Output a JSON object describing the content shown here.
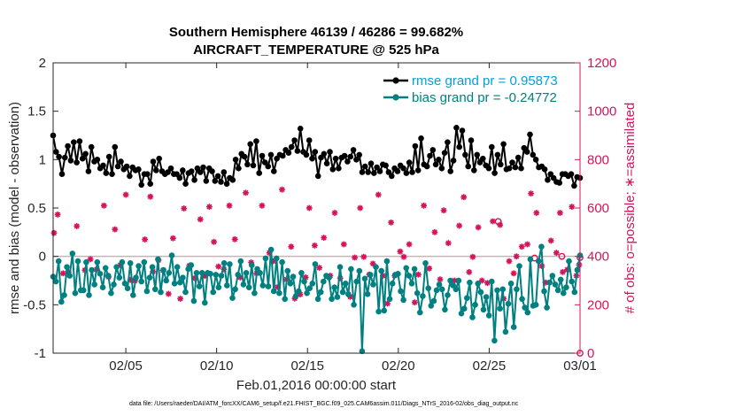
{
  "chart_data": {
    "type": "line",
    "title": "Southern Hemisphere 46139 / 46286 = 99.682%",
    "subtitle": "AIRCRAFT_TEMPERATURE @ 525 hPa",
    "xlabel": "Feb.01,2016 00:00:00 start",
    "ylabel": "rmse and bias (model - observation)",
    "y2label": "# of obs: o=possible; ∗=assimilated",
    "footer": "data file: /Users/raeder/DAI/ATM_forcXX/CAM6_setup/f.e21.FHIST_BGC.f09_025.CAM6assim.011/Diags_NTrS_2016-02/obs_diag_output.nc",
    "xlim": [
      1,
      30
    ],
    "ylim": [
      -1,
      2
    ],
    "y2lim": [
      0,
      1200
    ],
    "grid": false,
    "legend_position": "top-right",
    "xticks": [
      5,
      10,
      15,
      20,
      25,
      30
    ],
    "xtick_labels": [
      "02/05",
      "02/10",
      "02/15",
      "02/20",
      "02/25",
      "03/01"
    ],
    "yticks": [
      -1,
      -0.5,
      0,
      0.5,
      1,
      1.5,
      2
    ],
    "ytick_labels": [
      "-1",
      "-0.5",
      "0",
      "0.5",
      "1",
      "1.5",
      "2"
    ],
    "y2ticks": [
      0,
      200,
      400,
      600,
      800,
      1000,
      1200
    ],
    "y2tick_labels": [
      "0",
      "200",
      "400",
      "600",
      "800",
      "1000",
      "1200"
    ],
    "zero_line": 0,
    "colors": {
      "rmse": "#000000",
      "bias": "#008080",
      "obs": "#d4145a",
      "rmse_legend": "#00a0e0",
      "zero": "#c8b4b4"
    },
    "series": [
      {
        "name": "rmse grand pr = 0.95873",
        "key": "rmse",
        "values": [
          1.25,
          1.08,
          1.03,
          0.85,
          1.02,
          1.14,
          0.99,
          1.18,
          0.97,
          1.19,
          1.01,
          1.06,
          0.88,
          1.13,
          0.98,
          1.0,
          0.91,
          0.94,
          0.86,
          1.03,
          0.85,
          1.13,
          0.93,
          0.98,
          0.9,
          0.93,
          0.83,
          0.92,
          0.89,
          0.9,
          0.74,
          0.85,
          0.85,
          0.75,
          0.98,
          0.89,
          1.01,
          0.88,
          0.85,
          0.87,
          0.91,
          0.85,
          0.85,
          0.81,
          0.89,
          0.75,
          0.86,
          0.88,
          0.79,
          0.91,
          0.87,
          0.92,
          0.78,
          0.91,
          0.88,
          0.78,
          0.83,
          0.77,
          0.87,
          0.75,
          0.81,
          0.79,
          1.0,
          0.91,
          1.06,
          1.03,
          0.95,
          1.16,
          0.94,
          1.19,
          0.86,
          1.04,
          0.97,
          0.93,
          1.05,
          0.88,
          1.01,
          1.05,
          1.04,
          1.1,
          1.07,
          1.13,
          1.2,
          1.09,
          1.32,
          1.08,
          1.05,
          1.2,
          1.01,
          1.08,
          0.83,
          1.02,
          1.06,
          0.96,
          1.08,
          0.9,
          1.01,
          0.91,
          1.02,
          1.04,
          0.98,
          1.03,
          1.1,
          1.0,
          1.05,
          0.87,
          0.93,
          0.87,
          0.96,
          0.86,
          0.92,
          0.88,
          0.95,
          0.94,
          0.87,
          0.83,
          0.91,
          0.88,
          0.94,
          0.91,
          0.86,
          0.97,
          0.87,
          1.14,
          0.89,
          1.22,
          0.95,
          0.93,
          1.04,
          1.1,
          0.95,
          1.0,
          0.91,
          1.07,
          1.18,
          0.88,
          0.99,
          1.33,
          1.13,
          1.3,
          1.05,
          0.93,
          1.2,
          0.89,
          1.05,
          0.97,
          1.01,
          0.94,
          0.91,
          1.13,
          0.86,
          1.05,
          0.95,
          1.16,
          0.9,
          0.91,
          0.97,
          0.92,
          1.02,
          0.91,
          1.12,
          1.08,
          1.26,
          1.05,
          1.0,
          0.92,
          0.93,
          0.9,
          0.79,
          0.85,
          0.81,
          0.77,
          0.76,
          0.85,
          0.85,
          0.83,
          0.85,
          0.73,
          0.82,
          0.81
        ]
      },
      {
        "name": "bias grand pr = -0.24772",
        "key": "bias",
        "values": [
          -0.21,
          -0.26,
          -0.05,
          -0.47,
          -0.4,
          -0.11,
          -0.2,
          0.03,
          -0.38,
          -0.05,
          -0.35,
          -0.35,
          -0.06,
          -0.4,
          -0.14,
          -0.29,
          -0.06,
          -0.18,
          -0.32,
          -0.12,
          -0.2,
          -0.38,
          -0.29,
          -0.11,
          -0.22,
          -0.06,
          -0.28,
          -0.33,
          -0.07,
          -0.4,
          -0.22,
          -0.1,
          -0.26,
          -0.06,
          -0.36,
          -0.22,
          -0.11,
          -0.34,
          -0.03,
          -0.37,
          -0.14,
          -0.25,
          -0.17,
          0.01,
          -0.28,
          -0.11,
          -0.27,
          -0.22,
          -0.37,
          -0.13,
          -0.09,
          -0.46,
          -0.17,
          -0.31,
          -0.17,
          -0.48,
          -0.17,
          -0.18,
          -0.37,
          -0.19,
          -0.32,
          -0.2,
          -0.07,
          -0.3,
          -0.08,
          -0.43,
          -0.34,
          -0.19,
          -0.05,
          -0.29,
          -0.17,
          -0.32,
          -0.09,
          -0.38,
          -0.13,
          -0.17,
          -0.3,
          -0.02,
          -0.31,
          0.07,
          -0.36,
          -0.02,
          -0.38,
          -0.06,
          -0.44,
          -0.15,
          -0.28,
          -0.21,
          -0.41,
          -0.36,
          -0.17,
          -0.26,
          -0.38,
          -0.33,
          -0.28,
          -0.08,
          -0.44,
          -0.37,
          -0.26,
          -0.2,
          -0.22,
          -0.44,
          -0.32,
          -0.42,
          -0.11,
          -0.37,
          -0.28,
          -0.39,
          -0.13,
          -0.5,
          -0.26,
          -0.15,
          -0.98,
          -0.23,
          -0.39,
          -0.19,
          -0.29,
          -0.11,
          -0.57,
          -0.15,
          -0.56,
          -0.05,
          -0.44,
          -0.28,
          -0.19,
          -0.18,
          -0.36,
          -0.45,
          -0.12,
          -0.2,
          -0.28,
          -0.13,
          -0.38,
          -0.58,
          -0.41,
          -0.07,
          -0.33,
          -0.51,
          -0.46,
          -0.35,
          -0.29,
          -0.34,
          -0.55,
          -0.4,
          -0.25,
          -0.3,
          -0.34,
          -0.25,
          -0.59,
          -0.54,
          -0.43,
          -0.27,
          -0.63,
          -0.5,
          -0.28,
          -0.37,
          -0.55,
          -0.42,
          -0.61,
          -0.26,
          -0.87,
          -0.35,
          -0.54,
          -0.34,
          -0.78,
          -0.49,
          -0.28,
          -0.73,
          -0.34,
          -0.1,
          -0.44,
          -0.53,
          -0.58,
          -0.03,
          -0.51,
          -0.5,
          -0.05,
          0.1,
          -0.36,
          -0.53,
          -0.27,
          -0.2,
          -0.29,
          -0.35,
          -0.24,
          -0.38,
          -0.32,
          -0.05,
          -0.26,
          -0.37,
          -0.14,
          0.01
        ]
      }
    ],
    "obs_assimilated": [
      [
        1.05,
        497
      ],
      [
        1.25,
        573
      ],
      [
        1.55,
        330
      ],
      [
        1.85,
        335
      ],
      [
        2.3,
        525
      ],
      [
        2.75,
        343
      ],
      [
        3.05,
        388
      ],
      [
        3.4,
        346
      ],
      [
        3.8,
        610
      ],
      [
        4.05,
        315
      ],
      [
        4.4,
        512
      ],
      [
        4.7,
        364
      ],
      [
        5.0,
        655
      ],
      [
        5.25,
        303
      ],
      [
        5.5,
        299
      ],
      [
        6.05,
        470
      ],
      [
        6.35,
        647
      ],
      [
        6.5,
        337
      ],
      [
        6.8,
        384
      ],
      [
        7.05,
        342
      ],
      [
        7.35,
        245
      ],
      [
        7.6,
        475
      ],
      [
        8.0,
        225
      ],
      [
        8.2,
        598
      ],
      [
        8.5,
        362
      ],
      [
        8.8,
        310
      ],
      [
        9.1,
        553
      ],
      [
        9.35,
        319
      ],
      [
        9.6,
        605
      ],
      [
        9.85,
        460
      ],
      [
        10.1,
        358
      ],
      [
        10.4,
        347
      ],
      [
        10.7,
        610
      ],
      [
        11.0,
        471
      ],
      [
        11.3,
        313
      ],
      [
        11.6,
        663
      ],
      [
        11.9,
        375
      ],
      [
        12.2,
        330
      ],
      [
        12.5,
        610
      ],
      [
        12.9,
        415
      ],
      [
        13.1,
        380
      ],
      [
        13.35,
        273
      ],
      [
        13.6,
        676
      ],
      [
        13.85,
        305
      ],
      [
        14.1,
        440
      ],
      [
        14.3,
        226
      ],
      [
        14.6,
        243
      ],
      [
        14.9,
        313
      ],
      [
        15.1,
        600
      ],
      [
        15.4,
        445
      ],
      [
        15.65,
        353
      ],
      [
        15.9,
        477
      ],
      [
        16.25,
        320
      ],
      [
        16.5,
        580
      ],
      [
        16.8,
        310
      ],
      [
        17.0,
        450
      ],
      [
        17.35,
        233
      ],
      [
        17.6,
        395
      ],
      [
        17.9,
        600
      ],
      [
        18.1,
        398
      ],
      [
        18.4,
        325
      ],
      [
        18.6,
        370
      ],
      [
        18.9,
        655
      ],
      [
        19.15,
        320
      ],
      [
        19.4,
        205
      ],
      [
        19.6,
        540
      ],
      [
        19.8,
        320
      ],
      [
        20.1,
        420
      ],
      [
        20.3,
        398
      ],
      [
        20.6,
        450
      ],
      [
        20.9,
        210
      ],
      [
        21.1,
        325
      ],
      [
        21.4,
        610
      ],
      [
        21.7,
        350
      ],
      [
        22.0,
        500
      ],
      [
        22.3,
        305
      ],
      [
        22.5,
        590
      ],
      [
        22.75,
        455
      ],
      [
        23.1,
        300
      ],
      [
        23.35,
        527
      ],
      [
        23.6,
        645
      ],
      [
        23.9,
        335
      ],
      [
        24.1,
        398
      ],
      [
        24.4,
        520
      ],
      [
        24.6,
        300
      ],
      [
        24.9,
        290
      ],
      [
        25.2,
        545
      ],
      [
        25.6,
        530
      ],
      [
        25.8,
        225
      ],
      [
        26.1,
        380
      ],
      [
        26.35,
        330
      ],
      [
        26.5,
        400
      ],
      [
        26.8,
        440
      ],
      [
        27.1,
        450
      ],
      [
        27.3,
        660
      ],
      [
        27.6,
        580
      ],
      [
        27.9,
        360
      ],
      [
        28.1,
        292
      ],
      [
        28.4,
        465
      ],
      [
        28.7,
        415
      ],
      [
        28.9,
        580
      ],
      [
        29.05,
        335
      ],
      [
        29.3,
        345
      ],
      [
        29.55,
        605
      ],
      [
        29.8,
        320
      ],
      [
        29.95,
        365
      ]
    ],
    "obs_possible": [
      [
        25.5,
        544
      ],
      [
        27.5,
        393
      ],
      [
        29.0,
        400
      ],
      [
        30.0,
        395
      ],
      [
        30.0,
        0
      ]
    ]
  },
  "legend": {
    "rmse_label": "rmse grand pr = 0.95873",
    "bias_label": "bias grand pr = -0.24772"
  }
}
